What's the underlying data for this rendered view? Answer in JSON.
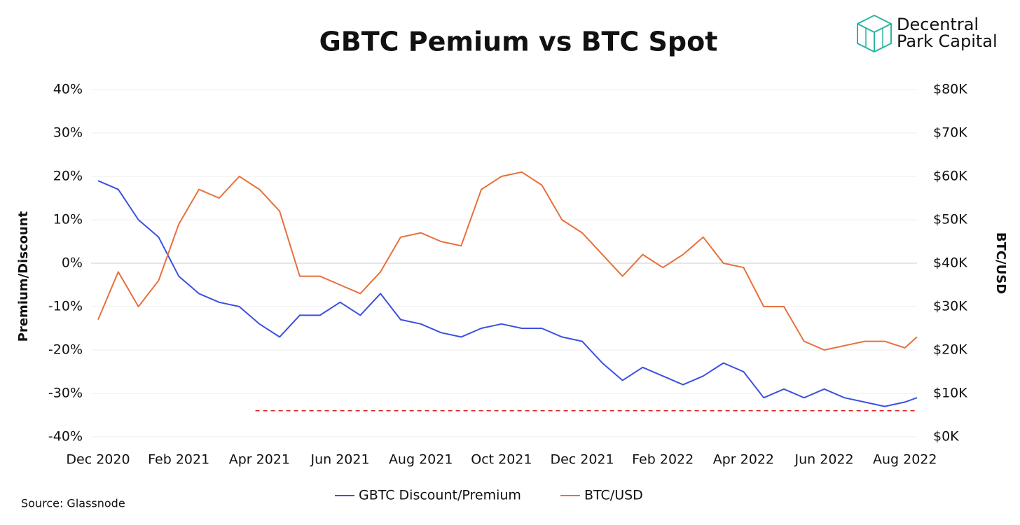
{
  "chart_data": {
    "type": "line",
    "title": "GBTC Pemium vs BTC Spot",
    "brand": [
      "Decentral",
      "Park Capital"
    ],
    "source": "Source: Glassnode",
    "ylabel": "Premium/Discount",
    "y2label": "BTC/USD",
    "xlim": [
      0,
      20.3
    ],
    "xticks": [
      {
        "value": 0,
        "label": "Dec 2020"
      },
      {
        "value": 2,
        "label": "Feb 2021"
      },
      {
        "value": 4,
        "label": "Apr 2021"
      },
      {
        "value": 6,
        "label": "Jun 2021"
      },
      {
        "value": 8,
        "label": "Aug 2021"
      },
      {
        "value": 10,
        "label": "Oct 2021"
      },
      {
        "value": 12,
        "label": "Dec 2021"
      },
      {
        "value": 14,
        "label": "Feb 2022"
      },
      {
        "value": 16,
        "label": "Apr 2022"
      },
      {
        "value": 18,
        "label": "Jun 2022"
      },
      {
        "value": 20,
        "label": "Aug 2022"
      }
    ],
    "ylim": [
      -40,
      40
    ],
    "yticks": [
      {
        "value": -40,
        "label": "-40%"
      },
      {
        "value": -30,
        "label": "-30%"
      },
      {
        "value": -20,
        "label": "-20%"
      },
      {
        "value": -10,
        "label": "-10%"
      },
      {
        "value": 0,
        "label": "0%"
      },
      {
        "value": 10,
        "label": "10%"
      },
      {
        "value": 20,
        "label": "20%"
      },
      {
        "value": 30,
        "label": "30%"
      },
      {
        "value": 40,
        "label": "40%"
      }
    ],
    "y2lim": [
      0,
      80000
    ],
    "y2ticks": [
      {
        "value": 0,
        "label": "$0K"
      },
      {
        "value": 10000,
        "label": "$10K"
      },
      {
        "value": 20000,
        "label": "$20K"
      },
      {
        "value": 30000,
        "label": "$30K"
      },
      {
        "value": 40000,
        "label": "$40K"
      },
      {
        "value": 50000,
        "label": "$50K"
      },
      {
        "value": 60000,
        "label": "$60K"
      },
      {
        "value": 70000,
        "label": "$70K"
      },
      {
        "value": 80000,
        "label": "$80K"
      }
    ],
    "grid": true,
    "x": [
      0,
      0.5,
      1,
      1.5,
      2,
      2.5,
      3,
      3.5,
      4,
      4.5,
      5,
      5.5,
      6,
      6.5,
      7,
      7.5,
      8,
      8.5,
      9,
      9.5,
      10,
      10.5,
      11,
      11.5,
      12,
      12.5,
      13,
      13.5,
      14,
      14.5,
      15,
      15.5,
      16,
      16.5,
      17,
      17.5,
      18,
      18.5,
      19,
      19.5,
      20,
      20.3
    ],
    "series": [
      {
        "name": "GBTC Discount/Premium",
        "color": "#3d50e0",
        "values": [
          19,
          17,
          10,
          6,
          -3,
          -7,
          -9,
          -10,
          -14,
          -17,
          -12,
          -12,
          -9,
          -12,
          -7,
          -13,
          -14,
          -16,
          -17,
          -15,
          -14,
          -15,
          -15,
          -17,
          -18,
          -23,
          -27,
          -24,
          -26,
          -28,
          -26,
          -23,
          -25,
          -31,
          -29,
          -31,
          -29,
          -31,
          -32,
          -33,
          -32,
          -31
        ]
      },
      {
        "name": "BTC/USD",
        "color": "#e8703a",
        "axis": "y2",
        "values": [
          27000,
          38000,
          30000,
          36000,
          49000,
          57000,
          55000,
          60000,
          57000,
          52000,
          37000,
          37000,
          35000,
          33000,
          38000,
          46000,
          47000,
          45000,
          44000,
          57000,
          60000,
          61000,
          58000,
          50000,
          47000,
          42000,
          37000,
          42000,
          39000,
          42000,
          46000,
          40000,
          39000,
          30000,
          30000,
          22000,
          20000,
          21000,
          22000,
          22000,
          20500,
          23000
        ]
      }
    ],
    "reference_line": {
      "y": -34,
      "x": [
        3.9,
        20.3
      ],
      "color": "#e02020"
    }
  }
}
